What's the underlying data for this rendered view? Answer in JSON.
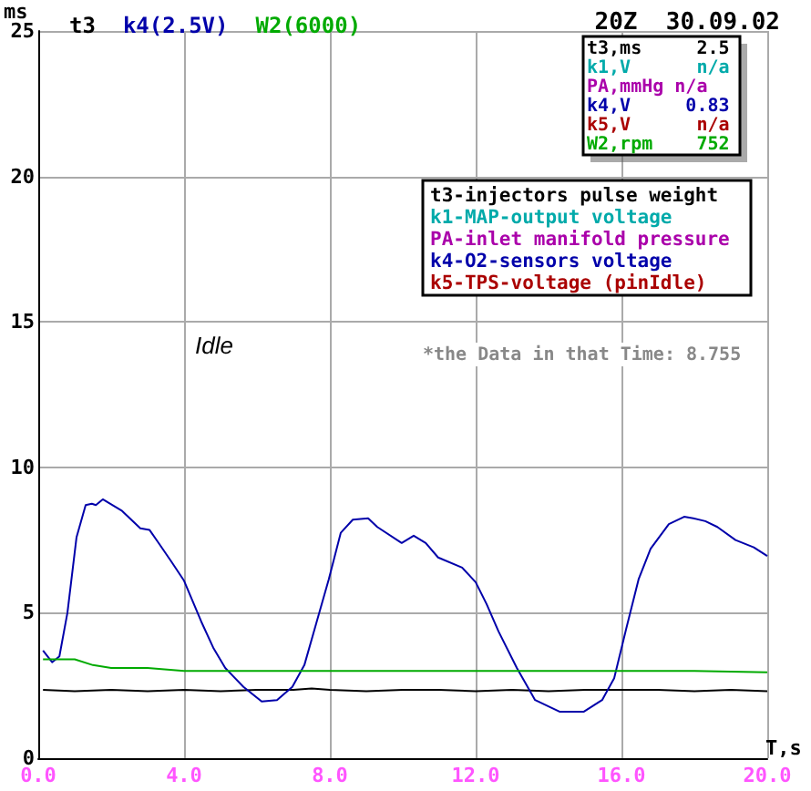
{
  "chart_data": {
    "type": "line",
    "title": "20Z  30.09.02",
    "ylabel": "ms",
    "xlabel": "T,s",
    "annotations": [
      "t3,ms     2.5",
      "k1,V      n/a",
      "PA,mmHg n/a",
      "k4,V     0.83",
      "k5,V      n/a",
      "W2,rpm    752",
      "t3-injectors pulse weight",
      "k1-MAP-output voltage",
      "PA-inlet manifold pressure",
      "k4-O2-sensors voltage",
      "k5-TPS-voltage (pinIdle)",
      "*the Data in that Time: 8.755",
      "Idle"
    ],
    "xlim": [
      0,
      20
    ],
    "xticks": [
      {
        "value": 0,
        "label": "0.0"
      },
      {
        "value": 4,
        "label": "4.0"
      },
      {
        "value": 8,
        "label": "8.0"
      },
      {
        "value": 12,
        "label": "12.0"
      },
      {
        "value": 16,
        "label": "16.0"
      },
      {
        "value": 20,
        "label": "20.0"
      }
    ],
    "ylim": [
      0,
      25
    ],
    "yticks": [
      0,
      5,
      10,
      15,
      20,
      25
    ],
    "grid": true,
    "legend": "top left",
    "marker": "none",
    "line_style": "solid",
    "series": [
      {
        "name": "t3",
        "color": "#000000",
        "x": [
          0.13,
          1,
          2,
          3,
          4,
          5,
          6,
          7,
          7.5,
          8,
          9,
          10,
          11,
          12,
          13,
          14,
          15,
          16,
          17,
          18,
          19,
          20
        ],
        "values": [
          2.35,
          2.3,
          2.35,
          2.3,
          2.35,
          2.3,
          2.35,
          2.35,
          2.4,
          2.35,
          2.3,
          2.35,
          2.35,
          2.3,
          2.35,
          2.3,
          2.35,
          2.35,
          2.35,
          2.3,
          2.35,
          2.3
        ]
      },
      {
        "name": "k4(2.5V)",
        "color": "#0000aa",
        "x": [
          0.13,
          0.38,
          0.58,
          0.8,
          1.05,
          1.3,
          1.47,
          1.58,
          1.77,
          2.3,
          2.8,
          3.05,
          3.3,
          3.63,
          4.0,
          4.47,
          4.8,
          5.13,
          5.63,
          6.13,
          6.55,
          6.97,
          7.3,
          7.63,
          7.97,
          8.3,
          8.63,
          9.05,
          9.3,
          9.97,
          10.3,
          10.63,
          10.97,
          11.63,
          12.0,
          12.3,
          12.63,
          13.13,
          13.63,
          13.97,
          14.3,
          14.97,
          15.47,
          15.8,
          16.13,
          16.47,
          16.8,
          17.3,
          17.72,
          17.97,
          18.3,
          18.63,
          19.13,
          19.63,
          20.0
        ],
        "values": [
          3.7,
          3.3,
          3.5,
          5.0,
          7.6,
          8.7,
          8.75,
          8.7,
          8.9,
          8.5,
          7.9,
          7.85,
          7.4,
          6.8,
          6.1,
          4.7,
          3.8,
          3.1,
          2.45,
          1.95,
          2.0,
          2.45,
          3.2,
          4.65,
          6.15,
          7.75,
          8.2,
          8.25,
          7.95,
          7.4,
          7.65,
          7.4,
          6.9,
          6.55,
          6.05,
          5.3,
          4.35,
          3.1,
          2.0,
          1.8,
          1.6,
          1.6,
          2.0,
          2.75,
          4.45,
          6.15,
          7.2,
          8.05,
          8.3,
          8.25,
          8.15,
          7.95,
          7.5,
          7.25,
          6.95
        ]
      },
      {
        "name": "W2(6000)",
        "color": "#00aa00",
        "x": [
          0.13,
          1,
          1.5,
          2,
          3,
          4,
          6,
          8,
          10,
          12,
          14,
          16,
          18,
          20
        ],
        "values": [
          3.4,
          3.4,
          3.2,
          3.1,
          3.1,
          3.0,
          3.0,
          3.0,
          3.0,
          3.0,
          3.0,
          3.0,
          3.0,
          2.95
        ]
      }
    ]
  }
}
